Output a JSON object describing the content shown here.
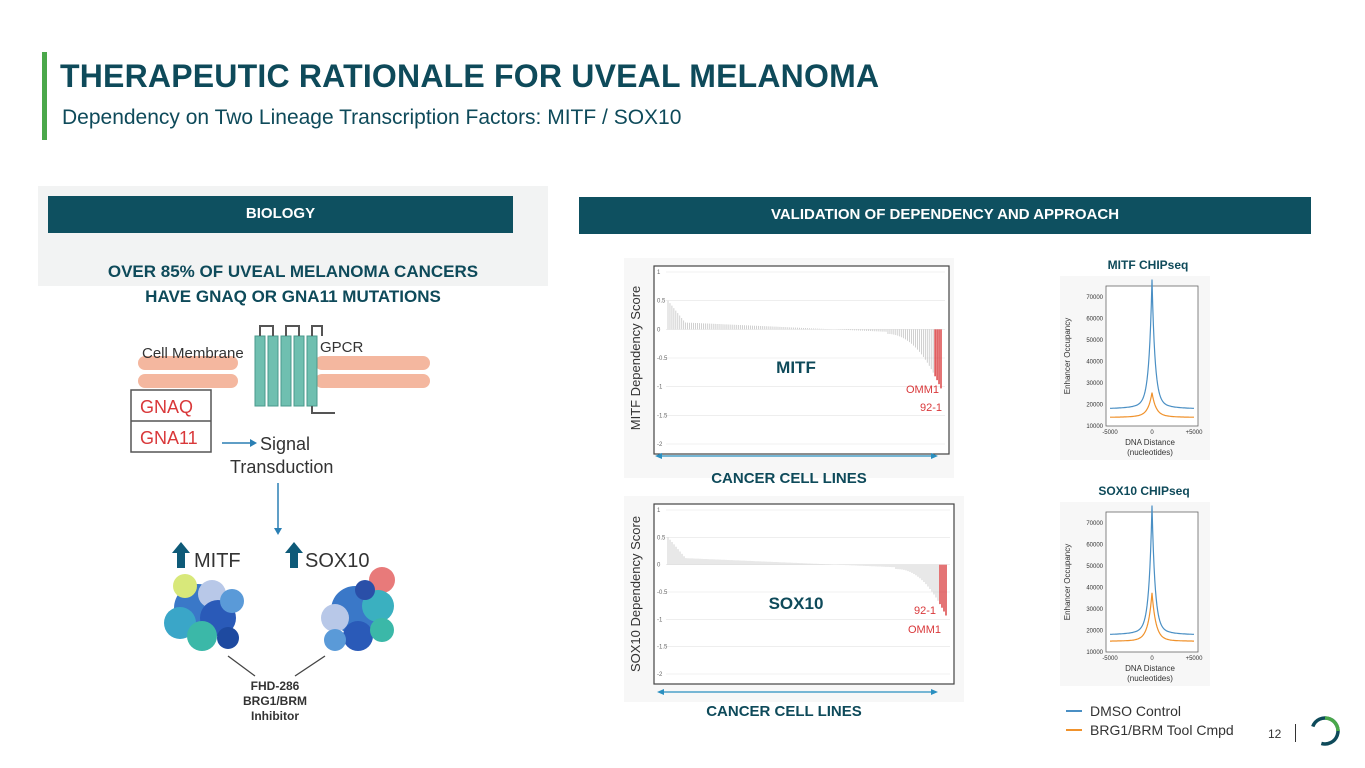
{
  "header": {
    "title": "THERAPEUTIC RATIONALE FOR UVEAL MELANOMA",
    "subtitle": "Dependency on Two Lineage Transcription Factors: MITF / SOX10"
  },
  "biology": {
    "band_label": "BIOLOGY",
    "headline_line1": "OVER 85% OF UVEAL MELANOMA CANCERS",
    "headline_line2": "HAVE GNAQ OR GNA11 MUTATIONS",
    "diagram": {
      "cell_membrane": "Cell Membrane",
      "gpcr": "GPCR",
      "gnaq": "GNAQ",
      "gna11": "GNA11",
      "signal_line1": "Signal",
      "signal_line2": "Transduction",
      "mitf": "MITF",
      "sox10": "SOX10",
      "inhibitor_line1": "FHD-286",
      "inhibitor_line2": "BRG1/BRM",
      "inhibitor_line3": "Inhibitor"
    }
  },
  "validation": {
    "band_label": "VALIDATION OF DEPENDENCY AND APPROACH",
    "mitf_plot": {
      "ylabel": "MITF Dependency Score",
      "center_label": "MITF",
      "highlight1": "OMM1",
      "highlight2": "92-1",
      "yticks": [
        "1",
        "0.5",
        "0",
        "-0.5",
        "-1",
        "-1.5",
        "-2"
      ],
      "xlabel": "CANCER CELL LINES"
    },
    "sox10_plot": {
      "ylabel": "SOX10 Dependency Score",
      "center_label": "SOX10",
      "highlight1": "92-1",
      "highlight2": "OMM1",
      "yticks": [
        "1",
        "0.5",
        "0",
        "-0.5",
        "-1",
        "-1.5",
        "-2"
      ],
      "xlabel": "CANCER CELL LINES"
    },
    "mitf_chip": {
      "title": "MITF CHIPseq",
      "ylabel": "Enhancer Occupancy",
      "yticks": [
        "70000",
        "60000",
        "50000",
        "40000",
        "30000",
        "20000",
        "10000"
      ],
      "xticks": [
        "-5000",
        "0",
        "+5000"
      ],
      "xlabel_line1": "DNA Distance",
      "xlabel_line2": "(nucleotides)"
    },
    "sox10_chip": {
      "title": "SOX10 CHIPseq",
      "ylabel": "Enhancer Occupancy",
      "yticks": [
        "70000",
        "60000",
        "50000",
        "40000",
        "30000",
        "20000",
        "10000"
      ],
      "xticks": [
        "-5000",
        "0",
        "+5000"
      ],
      "xlabel_line1": "DNA Distance",
      "xlabel_line2": "(nucleotides)"
    },
    "legend": {
      "dmso": "DMSO Control",
      "tool": "BRG1/BRM Tool Cmpd"
    }
  },
  "footer": {
    "page_number": "12"
  },
  "colors": {
    "navy": "#0e4a5a",
    "band": "#0e5060",
    "accent_green": "#4aa84a",
    "dmso_blue": "#4a8fc4",
    "tool_orange": "#f0922c",
    "highlight_red": "#d9383a"
  }
}
